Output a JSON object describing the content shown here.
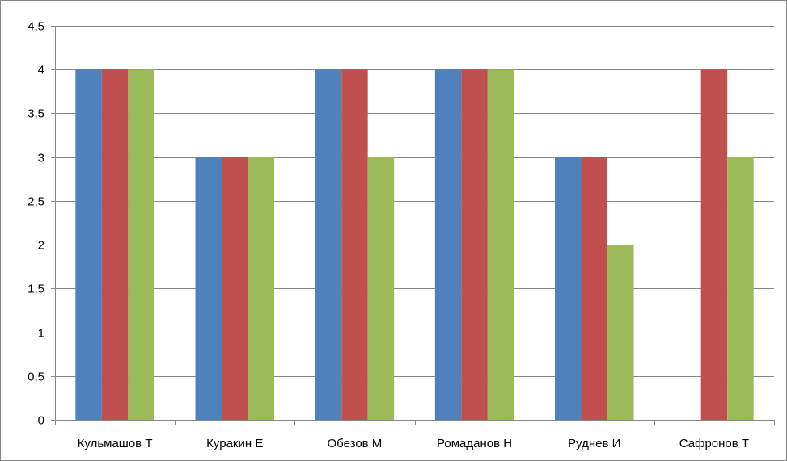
{
  "chart_data": {
    "type": "bar",
    "categories": [
      "Кульмашов Т",
      "Куракин Е",
      "Обезов М",
      "Ромаданов Н",
      "Руднев И",
      "Сафронов Т"
    ],
    "series": [
      {
        "values": [
          4,
          3,
          4,
          4,
          3,
          null
        ],
        "color": "#4f81bd"
      },
      {
        "values": [
          4,
          3,
          4,
          4,
          3,
          4
        ],
        "color": "#c0504d"
      },
      {
        "values": [
          4,
          3,
          3,
          4,
          2,
          3
        ],
        "color": "#9bbb59"
      }
    ],
    "ylim": [
      0,
      4.5
    ],
    "yticks": [
      "0",
      "0,5",
      "1",
      "1,5",
      "2",
      "2,5",
      "3",
      "3,5",
      "4",
      "4,5"
    ],
    "ytick_values": [
      0,
      0.5,
      1,
      1.5,
      2,
      2.5,
      3,
      3.5,
      4,
      4.5
    ],
    "grid": true,
    "legend": "none",
    "title": "",
    "xlabel": "",
    "ylabel": ""
  }
}
